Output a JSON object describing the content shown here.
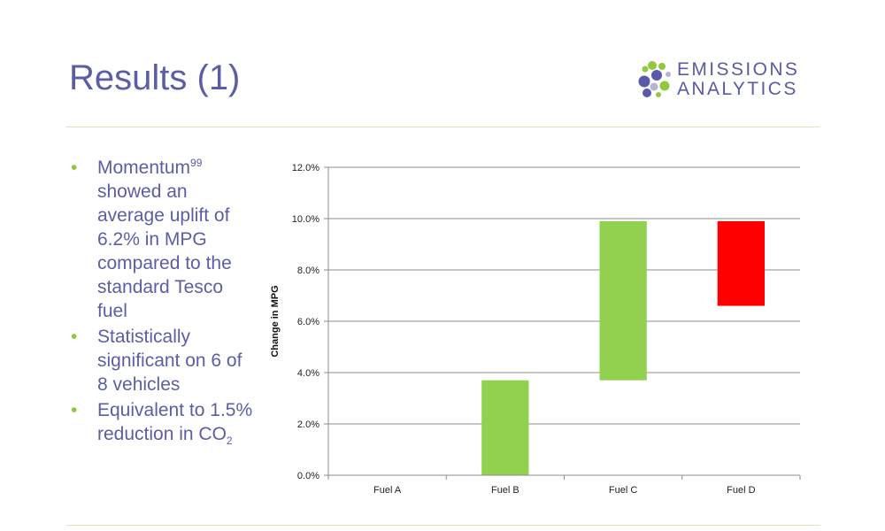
{
  "slide": {
    "title": "Results (1)"
  },
  "logo": {
    "line1": "EMISSIONS",
    "line2": "ANALYTICS",
    "colors": [
      "#92c83e",
      "#5a5aa8",
      "#b6b3d6"
    ]
  },
  "bullets": [
    {
      "before": "Momentum",
      "sup": "99",
      "after": " showed an average uplift of 6.2% in MPG compared to the standard Tesco fuel"
    },
    {
      "text": "Statistically significant on 6 of 8 vehicles"
    },
    {
      "before": "Equivalent to 1.5% reduction in CO",
      "sub": "2"
    }
  ],
  "chart_data": {
    "type": "bar",
    "title": "",
    "xlabel": "",
    "ylabel": "Change in MPG",
    "categories": [
      "Fuel A",
      "Fuel B",
      "Fuel C",
      "Fuel D"
    ],
    "bars": [
      {
        "category": "Fuel A",
        "start": 0.0,
        "end": 0.0,
        "color": ""
      },
      {
        "category": "Fuel B",
        "start": 0.0,
        "end": 3.7,
        "color": "#92d050"
      },
      {
        "category": "Fuel C",
        "start": 3.7,
        "end": 9.9,
        "color": "#92d050"
      },
      {
        "category": "Fuel D",
        "start": 6.6,
        "end": 9.9,
        "color": "#ff0000"
      }
    ],
    "ylim": [
      0,
      12
    ],
    "yticks": [
      "0.0%",
      "2.0%",
      "4.0%",
      "6.0%",
      "8.0%",
      "10.0%",
      "12.0%"
    ],
    "grid": true,
    "legend": "none"
  }
}
